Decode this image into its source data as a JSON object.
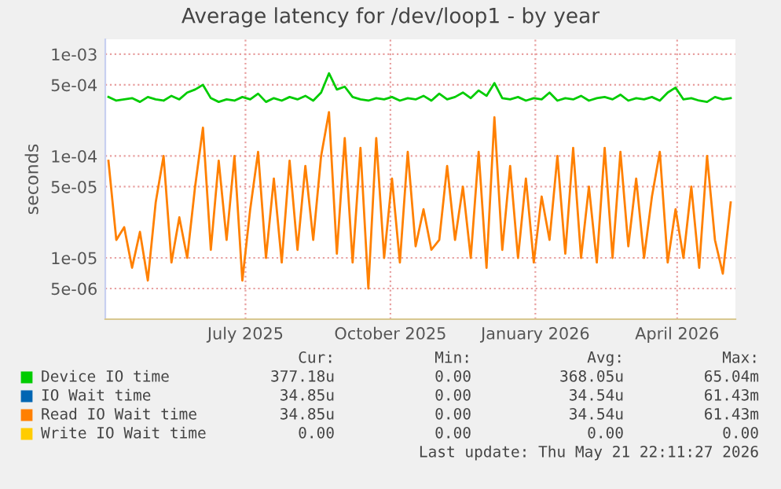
{
  "chart_data": {
    "type": "line",
    "title": "Average latency for /dev/loop1 - by year",
    "ylabel": "seconds",
    "x": [
      "2025-04-20",
      "2025-04-25",
      "2025-04-30",
      "2025-05-05",
      "2025-05-10",
      "2025-05-15",
      "2025-05-20",
      "2025-05-25",
      "2025-05-30",
      "2025-06-04",
      "2025-06-09",
      "2025-06-14",
      "2025-06-19",
      "2025-06-24",
      "2025-06-29",
      "2025-07-04",
      "2025-07-09",
      "2025-07-14",
      "2025-07-19",
      "2025-07-24",
      "2025-07-29",
      "2025-08-03",
      "2025-08-08",
      "2025-08-13",
      "2025-08-18",
      "2025-08-23",
      "2025-08-28",
      "2025-09-02",
      "2025-09-07",
      "2025-09-12",
      "2025-09-17",
      "2025-09-22",
      "2025-09-27",
      "2025-10-02",
      "2025-10-07",
      "2025-10-12",
      "2025-10-17",
      "2025-10-22",
      "2025-10-27",
      "2025-11-01",
      "2025-11-06",
      "2025-11-11",
      "2025-11-16",
      "2025-11-21",
      "2025-11-26",
      "2025-12-01",
      "2025-12-06",
      "2025-12-11",
      "2025-12-16",
      "2025-12-21",
      "2025-12-26",
      "2025-12-31",
      "2026-01-05",
      "2026-01-10",
      "2026-01-15",
      "2026-01-20",
      "2026-01-25",
      "2026-01-30",
      "2026-02-04",
      "2026-02-09",
      "2026-02-14",
      "2026-02-19",
      "2026-02-24",
      "2026-03-01",
      "2026-03-06",
      "2026-03-11",
      "2026-03-16",
      "2026-03-21",
      "2026-03-26",
      "2026-03-31",
      "2026-04-05",
      "2026-04-10",
      "2026-04-15",
      "2026-04-20",
      "2026-04-25",
      "2026-04-30",
      "2026-05-05",
      "2026-05-10",
      "2026-05-15",
      "2026-05-20"
    ],
    "series": [
      {
        "name": "Device IO time",
        "color": "#00cc00",
        "values": [
          0.00038,
          0.00035,
          0.00036,
          0.00037,
          0.00034,
          0.00038,
          0.00036,
          0.00035,
          0.00039,
          0.00036,
          0.00042,
          0.00045,
          0.0005,
          0.00037,
          0.00034,
          0.00036,
          0.00035,
          0.00038,
          0.00036,
          0.00041,
          0.00034,
          0.00037,
          0.00035,
          0.00038,
          0.00036,
          0.00039,
          0.00035,
          0.00042,
          0.00065,
          0.00045,
          0.00048,
          0.00038,
          0.00036,
          0.00035,
          0.00037,
          0.00036,
          0.00038,
          0.00035,
          0.00037,
          0.00036,
          0.00039,
          0.00035,
          0.00041,
          0.00036,
          0.00038,
          0.00042,
          0.00037,
          0.00044,
          0.00039,
          0.00052,
          0.00037,
          0.00036,
          0.00038,
          0.00035,
          0.00037,
          0.00036,
          0.00042,
          0.00035,
          0.00037,
          0.00036,
          0.00039,
          0.00035,
          0.00037,
          0.00038,
          0.00036,
          0.0004,
          0.00035,
          0.00037,
          0.00036,
          0.00038,
          0.00035,
          0.00042,
          0.00047,
          0.00036,
          0.00037,
          0.00035,
          0.00034,
          0.00038,
          0.00036,
          0.00037
        ]
      },
      {
        "name": "IO Wait time",
        "color": "#0066b3",
        "values": [
          null,
          null,
          null,
          null,
          null,
          null,
          null,
          null,
          null,
          null,
          null,
          null,
          null,
          null,
          null,
          null,
          null,
          null,
          null,
          null,
          null,
          null,
          null,
          null,
          null,
          null,
          null,
          null,
          null,
          null,
          null,
          null,
          null,
          null,
          null,
          null,
          null,
          null,
          null,
          null,
          null,
          null,
          null,
          null,
          null,
          null,
          null,
          null,
          null,
          null,
          null,
          null,
          null,
          null,
          null,
          null,
          null,
          null,
          null,
          null,
          null,
          null,
          null,
          null,
          null,
          null,
          null,
          null,
          null,
          null,
          null,
          null,
          null,
          null,
          null,
          null,
          null,
          null,
          null,
          null
        ]
      },
      {
        "name": "Read IO Wait time",
        "color": "#ff8000",
        "values": [
          9e-05,
          1.5e-05,
          2e-05,
          8e-06,
          1.8e-05,
          6e-06,
          3.5e-05,
          0.0001,
          9e-06,
          2.5e-05,
          1e-05,
          5e-05,
          0.00019,
          1.2e-05,
          9e-05,
          1.5e-05,
          0.0001,
          6e-06,
          3e-05,
          0.00011,
          1e-05,
          6e-05,
          9e-06,
          9e-05,
          1.2e-05,
          8e-05,
          1.5e-05,
          0.0001,
          0.00027,
          1.1e-05,
          0.00015,
          9e-06,
          0.00012,
          5e-06,
          0.00015,
          1e-05,
          6e-05,
          9e-06,
          0.00011,
          1.3e-05,
          3e-05,
          1.2e-05,
          1.5e-05,
          8e-05,
          1.5e-05,
          5e-05,
          1e-05,
          0.00011,
          8e-06,
          0.00024,
          1.2e-05,
          8e-05,
          1e-05,
          6e-05,
          9e-06,
          4e-05,
          1.5e-05,
          0.0001,
          1.1e-05,
          0.00012,
          1e-05,
          5e-05,
          9e-06,
          0.00012,
          1e-05,
          0.00011,
          1.3e-05,
          6e-05,
          1e-05,
          4e-05,
          0.00011,
          9e-06,
          3e-05,
          1e-05,
          5e-05,
          8e-06,
          0.0001,
          1.5e-05,
          7e-06,
          3.5e-05
        ]
      },
      {
        "name": "Write IO Wait time",
        "color": "#ffcc00",
        "values": [
          null,
          null,
          null,
          null,
          null,
          null,
          null,
          null,
          null,
          null,
          null,
          null,
          null,
          null,
          null,
          null,
          null,
          null,
          null,
          null,
          null,
          null,
          null,
          null,
          null,
          null,
          null,
          null,
          null,
          null,
          null,
          null,
          null,
          null,
          null,
          null,
          null,
          null,
          null,
          null,
          null,
          null,
          null,
          null,
          null,
          null,
          null,
          null,
          null,
          null,
          null,
          null,
          null,
          null,
          null,
          null,
          null,
          null,
          null,
          null,
          null,
          null,
          null,
          null,
          null,
          null,
          null,
          null,
          null,
          null,
          null,
          null,
          null,
          null,
          null,
          null,
          null,
          null,
          null,
          null
        ]
      }
    ],
    "log": "y",
    "ylim": [
      2.5e-06,
      0.0014
    ],
    "yticks": [
      {
        "value": 5e-06,
        "label": "5e-06"
      },
      {
        "value": 1e-05,
        "label": "1e-05"
      },
      {
        "value": 5e-05,
        "label": "5e-05"
      },
      {
        "value": 0.0001,
        "label": "1e-04"
      },
      {
        "value": 0.0005,
        "label": "5e-04"
      },
      {
        "value": 0.001,
        "label": "1e-03"
      }
    ],
    "xlim": [
      "2025-04-18",
      "2026-05-23"
    ],
    "xticks": [
      {
        "value": "2025-07-16",
        "label": "July 2025"
      },
      {
        "value": "2025-10-16",
        "label": "October 2025"
      },
      {
        "value": "2026-01-16",
        "label": "January 2026"
      },
      {
        "value": "2026-04-16",
        "label": "April 2026"
      }
    ],
    "grid": true,
    "legend": "bottom",
    "annotations": [
      "Cur:",
      "Min:",
      "Avg:",
      "Max:",
      "377.18u",
      "0.00",
      "368.05u",
      "65.04m",
      "34.85u",
      "0.00",
      "34.54u",
      "61.43m",
      "34.85u",
      "0.00",
      "34.54u",
      "61.43m",
      "0.00",
      "0.00",
      "0.00",
      "0.00",
      "Last update: Thu May 21 22:11:27 2026"
    ]
  }
}
